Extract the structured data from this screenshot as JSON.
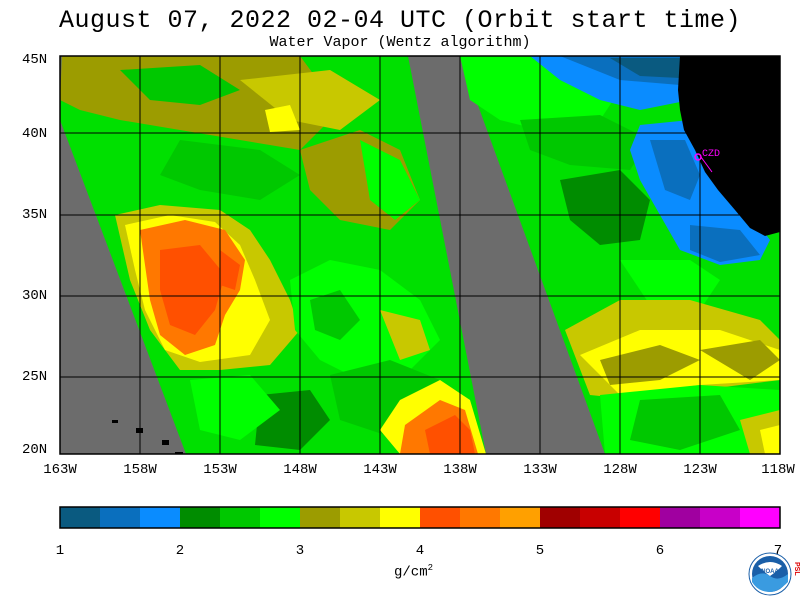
{
  "title": "August 07, 2022  02-04 UTC  (Orbit start time)",
  "subtitle": "Water Vapor (Wentz algorithm)",
  "map": {
    "lat_labels": [
      "45N",
      "40N",
      "35N",
      "30N",
      "25N",
      "20N"
    ],
    "lon_labels": [
      "163W",
      "158W",
      "153W",
      "148W",
      "143W",
      "138W",
      "133W",
      "128W",
      "123W",
      "118W"
    ],
    "station_label": "CZD",
    "colors": {
      "no_data": "#6c6c6c",
      "land": "#000000",
      "station": "#ff00ff"
    }
  },
  "colorbar": {
    "ticks": [
      "1",
      "2",
      "3",
      "4",
      "5",
      "6",
      "7"
    ],
    "units": "g/cm",
    "units_sup": "2",
    "colors": [
      "#0a5a80",
      "#0a6fbe",
      "#0a8cff",
      "#008c00",
      "#00c800",
      "#00ff00",
      "#9c9c00",
      "#c8c800",
      "#ffff00",
      "#ff5000",
      "#ff7800",
      "#ffa000",
      "#a00000",
      "#c80000",
      "#ff0000",
      "#a000a0",
      "#c800c8",
      "#ff00ff"
    ]
  },
  "logo": {
    "text": "NOAA",
    "side_text": "PSL"
  }
}
